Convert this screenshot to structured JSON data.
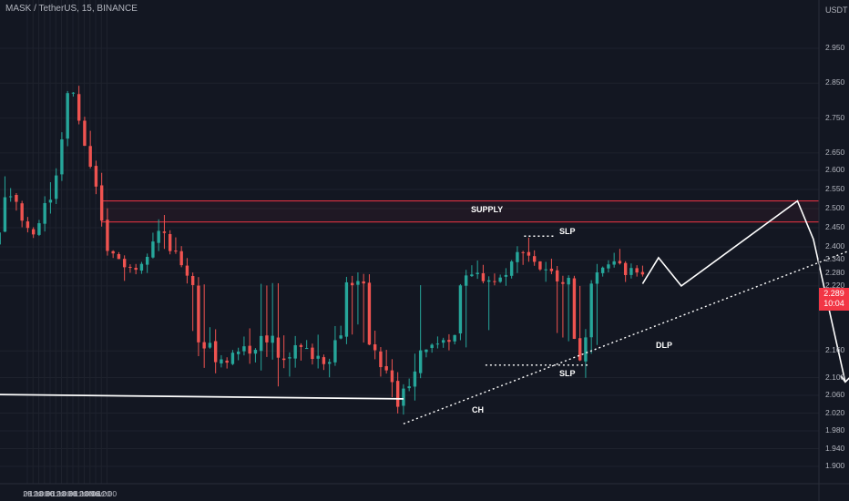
{
  "header": {
    "title": "MASK / TetherUS, 15, BINANCE",
    "currency": "USDT"
  },
  "price_tag": {
    "price": "2.289",
    "countdown": "10:04"
  },
  "colors": {
    "up": "#26a69a",
    "down": "#ef5350",
    "background": "#131722",
    "zone": "#f23645",
    "drawing": "#ffffff"
  },
  "annotations": {
    "supply": "SUPPLY",
    "slp_top": "SLP",
    "slp_bottom": "SLP",
    "dlp": "DLP",
    "ch": "CH"
  },
  "chart_data": {
    "type": "candlestick",
    "symbol": "MASK / TetherUS",
    "interval": "15",
    "exchange": "BINANCE",
    "y_ticks": [
      "2.950",
      "2.850",
      "2.750",
      "2.650",
      "2.600",
      "2.550",
      "2.500",
      "2.450",
      "2.400",
      "2.340",
      "2.280",
      "2.220",
      "2.160",
      "2.100",
      "2.060",
      "2.020",
      "1.980",
      "1.940",
      "1.900"
    ],
    "x_ticks": [
      "29",
      "06:00",
      "12:00",
      "18:00",
      "30",
      "06:00",
      "12:00",
      "18:00",
      "31",
      "06:00",
      "12:00",
      "18:00",
      "Nov",
      "06:00",
      "12:00"
    ],
    "last_price": 2.289,
    "supply_zone": [
      2.465,
      2.52
    ],
    "price_path": [
      [
        -20.4,
        1.88
      ],
      [
        -18.5,
        2.06
      ],
      [
        -17.0,
        2.44
      ],
      [
        -16.0,
        2.33
      ],
      [
        -15.0,
        2.25
      ],
      [
        -14.0,
        2.13
      ],
      [
        -13.0,
        2.21
      ],
      [
        -12.5,
        2.18
      ],
      [
        -11.0,
        2.26
      ],
      [
        -10.0,
        2.2
      ],
      [
        -9.0,
        2.15
      ],
      [
        -8.2,
        2.27
      ],
      [
        -7.6,
        2.8
      ],
      [
        -7.0,
        2.68
      ],
      [
        -6.0,
        2.62
      ],
      [
        -5.0,
        2.47
      ],
      [
        -4.0,
        2.33
      ],
      [
        -3.0,
        2.56
      ],
      [
        -2.0,
        2.43
      ],
      [
        -1.0,
        2.55
      ],
      [
        -0.3,
        2.86
      ],
      [
        0.7,
        2.57
      ],
      [
        1.4,
        2.38
      ],
      [
        2.5,
        2.29
      ],
      [
        3.5,
        2.45
      ],
      [
        4.5,
        2.34
      ],
      [
        5.3,
        2.19
      ],
      [
        6.5,
        2.14
      ],
      [
        8.0,
        2.18
      ],
      [
        10.0,
        2.16
      ],
      [
        11.0,
        2.14
      ],
      [
        12.0,
        2.25
      ],
      [
        13.0,
        2.18
      ],
      [
        14.1,
        2.04
      ],
      [
        15.2,
        2.15
      ],
      [
        16.5,
        2.2
      ],
      [
        17.5,
        2.27
      ],
      [
        18.5,
        2.24
      ],
      [
        19.6,
        2.4
      ],
      [
        20.5,
        2.28
      ],
      [
        21.5,
        2.25
      ],
      [
        22.2,
        2.14
      ],
      [
        23.3,
        2.33
      ],
      [
        24.2,
        2.28
      ],
      [
        24.8,
        2.3
      ]
    ],
    "drawings": {
      "ch_line": {
        "from": [
          -7.7,
          2.064
        ],
        "to": [
          14.1,
          2.052
        ]
      },
      "slp_top_line": {
        "from": [
          19.4,
          2.428
        ],
        "to": [
          20.7,
          2.428
        ]
      },
      "slp_bottom_line": {
        "from": [
          17.7,
          2.128
        ],
        "to": [
          22.2,
          2.128
        ]
      },
      "dlp_trendline": {
        "from": [
          14.1,
          1.996
        ],
        "to": [
          34.2,
          2.402
        ]
      },
      "projection": [
        [
          24.6,
          2.23
        ],
        [
          25.3,
          2.35
        ],
        [
          26.3,
          2.22
        ],
        [
          31.4,
          2.52
        ],
        [
          32.1,
          2.42
        ],
        [
          33.5,
          2.09
        ]
      ]
    }
  }
}
